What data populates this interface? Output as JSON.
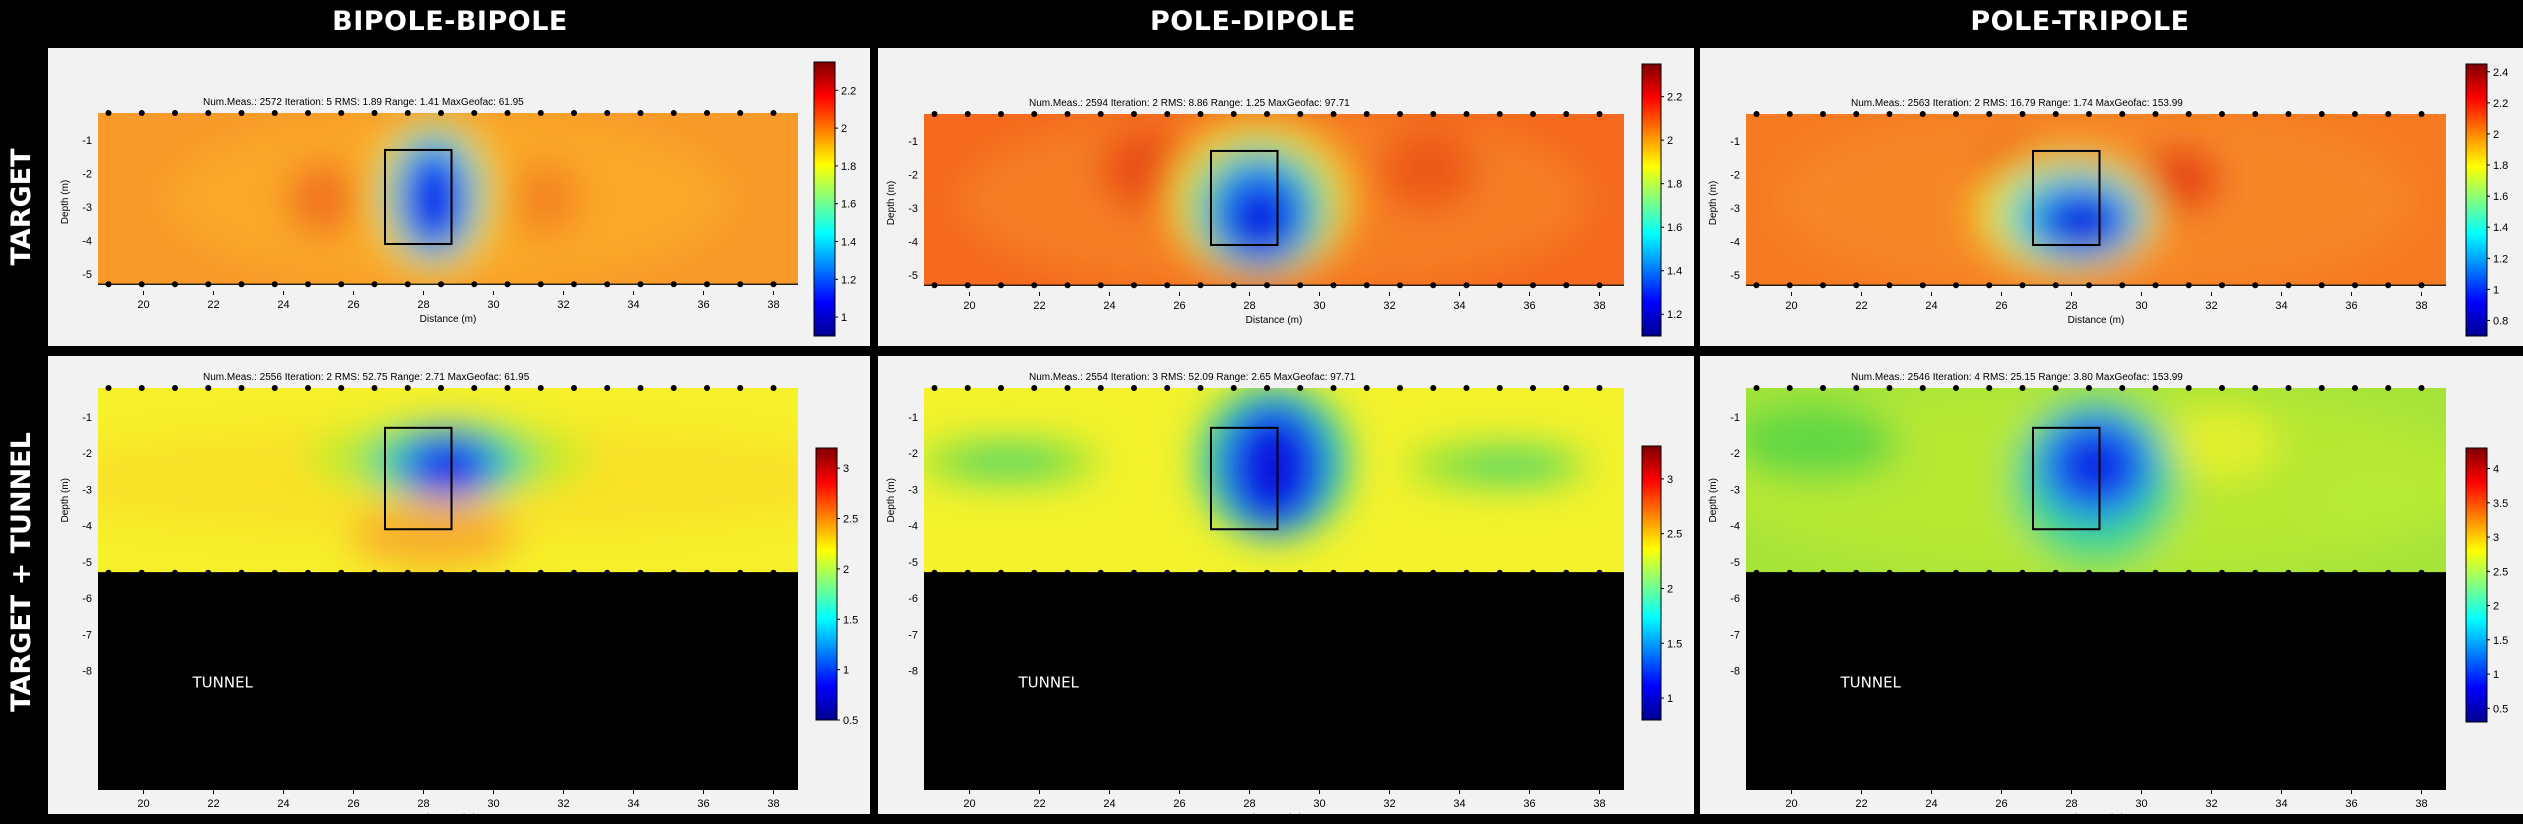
{
  "column_titles": [
    "BIPOLE-BIPOLE",
    "POLE-DIPOLE",
    "POLE-TRIPOLE"
  ],
  "row_titles": [
    "TARGET",
    "TARGET + TUNNEL"
  ],
  "tunnel_label": "TUNNEL",
  "colors": {
    "low": "#0000ff",
    "mid": "#ffff00",
    "high": "#ff0000",
    "background": "#000000"
  },
  "chart_data": [
    {
      "type": "heatmap",
      "row": "TARGET",
      "column": "BIPOLE-BIPOLE",
      "info": "Num.Meas.: 2572   Iteration: 5   RMS: 1.89   Range: 1.41   MaxGeofac: 61.95",
      "xlabel": "Distance (m)",
      "ylabel": "Depth (m)",
      "xticks": [
        "20",
        "22",
        "24",
        "26",
        "28",
        "30",
        "32",
        "34",
        "36",
        "38"
      ],
      "yticks": [
        "-1",
        "-2",
        "-3",
        "-4",
        "-5"
      ],
      "xlim": [
        18.7,
        38.7
      ],
      "ylim": [
        -5.5,
        -0.2
      ],
      "colorbar": {
        "ticks": [
          "1",
          "1.2",
          "1.4",
          "1.6",
          "1.8",
          "2",
          "2.2"
        ],
        "range": [
          0.9,
          2.35
        ]
      },
      "target_box": {
        "x": [
          26.9,
          28.8
        ],
        "depth": [
          -1.3,
          -4.1
        ]
      },
      "tunnel": false
    },
    {
      "type": "heatmap",
      "row": "TARGET",
      "column": "POLE-DIPOLE",
      "info": "Num.Meas.: 2594   Iteration: 2   RMS: 8.86   Range: 1.25   MaxGeofac: 97.71",
      "xlabel": "Distance (m)",
      "ylabel": "Depth (m)",
      "xticks": [
        "20",
        "22",
        "24",
        "26",
        "28",
        "30",
        "32",
        "34",
        "36",
        "38"
      ],
      "yticks": [
        "-1",
        "-2",
        "-3",
        "-4",
        "-5"
      ],
      "xlim": [
        18.7,
        38.7
      ],
      "ylim": [
        -5.5,
        -0.2
      ],
      "colorbar": {
        "ticks": [
          "1.2",
          "1.4",
          "1.6",
          "1.8",
          "2",
          "2.2"
        ],
        "range": [
          1.1,
          2.35
        ]
      },
      "target_box": {
        "x": [
          26.9,
          28.8
        ],
        "depth": [
          -1.3,
          -4.1
        ]
      },
      "tunnel": false
    },
    {
      "type": "heatmap",
      "row": "TARGET",
      "column": "POLE-TRIPOLE",
      "info": "Num.Meas.: 2563   Iteration: 2   RMS: 16.79   Range: 1.74   MaxGeofac: 153.99",
      "xlabel": "Distance (m)",
      "ylabel": "Depth (m)",
      "xticks": [
        "20",
        "22",
        "24",
        "26",
        "28",
        "30",
        "32",
        "34",
        "36",
        "38"
      ],
      "yticks": [
        "-1",
        "-2",
        "-3",
        "-4",
        "-5"
      ],
      "xlim": [
        18.7,
        38.7
      ],
      "ylim": [
        -5.5,
        -0.2
      ],
      "colorbar": {
        "ticks": [
          "0.8",
          "1",
          "1.2",
          "1.4",
          "1.6",
          "1.8",
          "2",
          "2.2",
          "2.4"
        ],
        "range": [
          0.7,
          2.45
        ]
      },
      "target_box": {
        "x": [
          26.9,
          28.8
        ],
        "depth": [
          -1.3,
          -4.1
        ]
      },
      "tunnel": false
    },
    {
      "type": "heatmap",
      "row": "TARGET + TUNNEL",
      "column": "BIPOLE-BIPOLE",
      "info": "Num.Meas.: 2556   Iteration: 2   RMS: 52.75   Range: 2.71   MaxGeofac: 61.95",
      "xlabel": "Distance (m)",
      "ylabel": "Depth (m)",
      "xticks": [
        "20",
        "22",
        "24",
        "26",
        "28",
        "30",
        "32",
        "34",
        "36",
        "38"
      ],
      "yticks": [
        "-1",
        "-2",
        "-3",
        "-4",
        "-5",
        "-6",
        "-7",
        "-8"
      ],
      "xlim": [
        18.7,
        38.7
      ],
      "ylim": [
        -11.3,
        -0.2
      ],
      "colorbar": {
        "ticks": [
          "0.5",
          "1",
          "1.5",
          "2",
          "2.5",
          "3"
        ],
        "range": [
          0.5,
          3.2
        ]
      },
      "target_box": {
        "x": [
          26.9,
          28.8
        ],
        "depth": [
          -1.3,
          -4.1
        ]
      },
      "tunnel": true
    },
    {
      "type": "heatmap",
      "row": "TARGET + TUNNEL",
      "column": "POLE-DIPOLE",
      "info": "Num.Meas.: 2554   Iteration: 3   RMS: 52.09   Range: 2.65   MaxGeofac: 97.71",
      "xlabel": "Distance (m)",
      "ylabel": "Depth (m)",
      "xticks": [
        "20",
        "22",
        "24",
        "26",
        "28",
        "30",
        "32",
        "34",
        "36",
        "38"
      ],
      "yticks": [
        "-1",
        "-2",
        "-3",
        "-4",
        "-5",
        "-6",
        "-7",
        "-8"
      ],
      "xlim": [
        18.7,
        38.7
      ],
      "ylim": [
        -11.3,
        -0.2
      ],
      "colorbar": {
        "ticks": [
          "1",
          "1.5",
          "2",
          "2.5",
          "3"
        ],
        "range": [
          0.8,
          3.3
        ]
      },
      "target_box": {
        "x": [
          26.9,
          28.8
        ],
        "depth": [
          -1.3,
          -4.1
        ]
      },
      "tunnel": true
    },
    {
      "type": "heatmap",
      "row": "TARGET + TUNNEL",
      "column": "POLE-TRIPOLE",
      "info": "Num.Meas.: 2546   Iteration: 4   RMS: 25.15   Range: 3.80   MaxGeofac: 153.99",
      "xlabel": "Distance (m)",
      "ylabel": "Depth (m)",
      "xticks": [
        "20",
        "22",
        "24",
        "26",
        "28",
        "30",
        "32",
        "34",
        "36",
        "38"
      ],
      "yticks": [
        "-1",
        "-2",
        "-3",
        "-4",
        "-5",
        "-6",
        "-7",
        "-8"
      ],
      "xlim": [
        18.7,
        38.7
      ],
      "ylim": [
        -11.3,
        -0.2
      ],
      "colorbar": {
        "ticks": [
          "0.5",
          "1",
          "1.5",
          "2",
          "2.5",
          "3",
          "3.5",
          "4"
        ],
        "range": [
          0.3,
          4.3
        ]
      },
      "target_box": {
        "x": [
          26.9,
          28.8
        ],
        "depth": [
          -1.3,
          -4.1
        ]
      },
      "tunnel": true
    }
  ]
}
